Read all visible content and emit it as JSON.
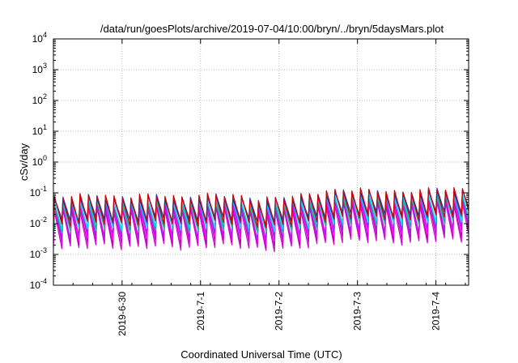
{
  "chart_data": {
    "type": "line",
    "title": "/data/run/goesPlots/archive/2019-07-04/10:00/bryn/../bryn/5daysMars.plot",
    "xlabel": "Coordinated Universal Time (UTC)",
    "ylabel": "cSv/day",
    "yscale": "log",
    "ylim": [
      0.0001,
      10000
    ],
    "xlim": [
      "2019-06-29T03:00",
      "2019-07-04T10:00"
    ],
    "x_ticks": [
      {
        "date": "2019-06-30T00:00",
        "label": "2019-6-30"
      },
      {
        "date": "2019-07-01T00:00",
        "label": "2019-7-1"
      },
      {
        "date": "2019-07-02T00:00",
        "label": "2019-7-2"
      },
      {
        "date": "2019-07-03T00:00",
        "label": "2019-7-3"
      },
      {
        "date": "2019-07-04T00:00",
        "label": "2019-7-4"
      }
    ],
    "y_ticks": [
      {
        "value": 0.0001,
        "base": "10",
        "exp": "-4"
      },
      {
        "value": 0.001,
        "base": "10",
        "exp": "-3"
      },
      {
        "value": 0.01,
        "base": "10",
        "exp": "-2"
      },
      {
        "value": 0.1,
        "base": "10",
        "exp": "-1"
      },
      {
        "value": 1,
        "base": "10",
        "exp": "0"
      },
      {
        "value": 10,
        "base": "10",
        "exp": "1"
      },
      {
        "value": 100,
        "base": "10",
        "exp": "2"
      },
      {
        "value": 1000,
        "base": "10",
        "exp": "3"
      },
      {
        "value": 10000,
        "base": "10",
        "exp": "4"
      }
    ],
    "grid": true,
    "sawtooth": {
      "start": "2019-06-29T03:00",
      "period_hours": 2.6,
      "cycles": 50,
      "peak_envelope": [
        0.07,
        0.08,
        0.09,
        0.07,
        0.08,
        0.09,
        0.07,
        0.08,
        0.09,
        0.08,
        0.06,
        0.07,
        0.08,
        0.1,
        0.12,
        0.13,
        0.12,
        0.1,
        0.12,
        0.14,
        0.13,
        0.12
      ]
    },
    "series": [
      {
        "color": "#d400d4",
        "peak_factor": 0.35,
        "trough_factor": 0.022
      },
      {
        "color": "#c000c0",
        "peak_factor": 0.45,
        "trough_factor": 0.03
      },
      {
        "color": "#ff00ff",
        "peak_factor": 0.55,
        "trough_factor": 0.04
      },
      {
        "color": "#a020f0",
        "peak_factor": 0.6,
        "trough_factor": 0.05
      },
      {
        "color": "#40c080",
        "peak_factor": 0.65,
        "trough_factor": 0.08
      },
      {
        "color": "#00b0b0",
        "peak_factor": 0.7,
        "trough_factor": 0.09
      },
      {
        "color": "#00e0ff",
        "peak_factor": 0.75,
        "trough_factor": 0.1
      },
      {
        "color": "#2040ff",
        "peak_factor": 0.9,
        "trough_factor": 0.15
      },
      {
        "color": "#303080",
        "peak_factor": 0.85,
        "trough_factor": 0.17
      },
      {
        "color": "#d00000",
        "peak_factor": 1.0,
        "trough_factor": 0.13
      }
    ]
  }
}
